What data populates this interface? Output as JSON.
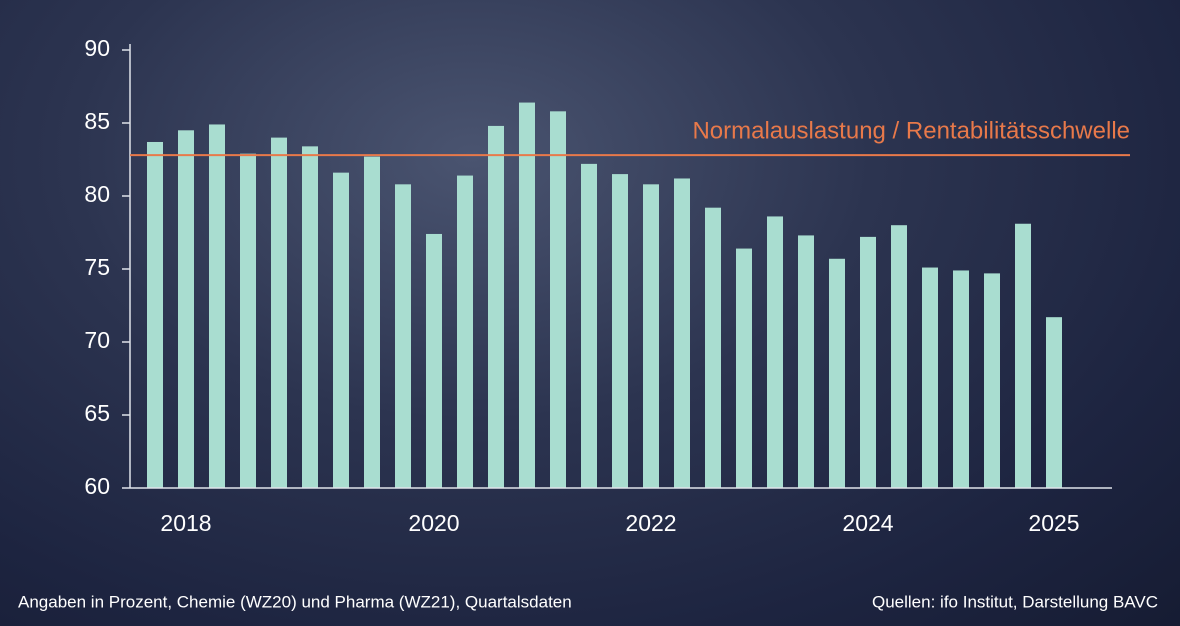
{
  "chart_data": {
    "type": "bar",
    "categories": [
      null,
      "2018",
      null,
      null,
      null,
      null,
      null,
      null,
      null,
      "2020",
      null,
      null,
      null,
      null,
      null,
      null,
      "2022",
      null,
      null,
      null,
      null,
      null,
      null,
      "2024",
      null,
      null,
      null,
      null,
      null,
      "2025"
    ],
    "values": [
      83.7,
      84.5,
      84.9,
      82.9,
      84.0,
      83.4,
      81.6,
      82.7,
      80.8,
      77.4,
      81.4,
      84.8,
      86.4,
      85.8,
      82.2,
      81.5,
      80.8,
      81.2,
      79.2,
      76.4,
      78.6,
      77.3,
      75.7,
      77.2,
      78.0,
      75.1,
      74.9,
      74.7,
      78.1,
      71.7
    ],
    "color": "#a9ddd0",
    "ylim": [
      60,
      90
    ],
    "yticks": [
      60,
      65,
      70,
      75,
      80,
      85,
      90
    ],
    "grid": false,
    "reference": {
      "value": 82.8,
      "label": "Normalauslastung / Rentabilitätsschwelle",
      "color": "#e8794a"
    },
    "note": "Angaben in Prozent, Chemie (WZ20) und Pharma (WZ21), Quartalsdaten",
    "source": "Quellen: ifo Institut, Darstellung BAVC"
  }
}
